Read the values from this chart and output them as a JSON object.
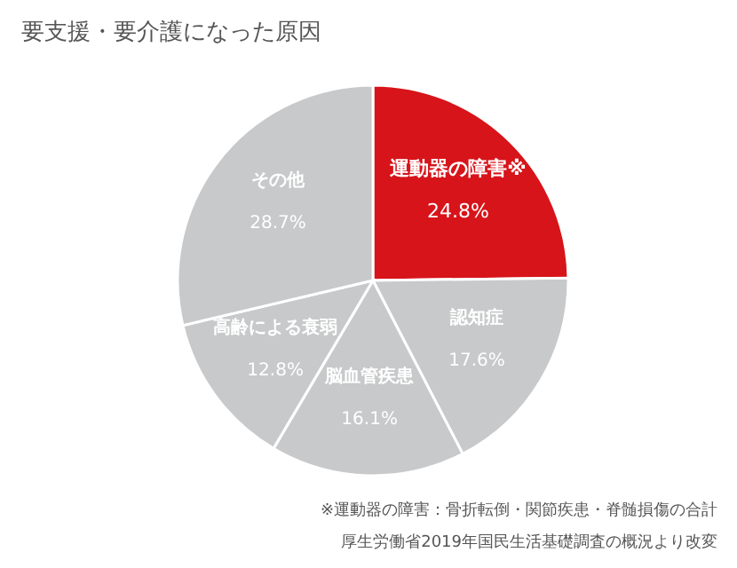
{
  "chart_data": {
    "type": "pie",
    "title": "要支援・要介護になった原因",
    "categories": [
      "運動器の障害※",
      "認知症",
      "脳血管疾患",
      "高齢による衰弱",
      "その他"
    ],
    "values": [
      24.8,
      17.6,
      16.1,
      12.8,
      28.7
    ],
    "value_labels": [
      "24.8%",
      "17.6%",
      "16.1%",
      "12.8%",
      "28.7%"
    ],
    "colors": [
      "#d7141a",
      "#c8c9ca",
      "#c8c9ca",
      "#c8c9ca",
      "#c8c9ca"
    ],
    "annotations": [
      "※運動器の障害：骨折転倒・関節疾患・脊髄損傷の合計",
      "厚生労働省2019年国民生活基礎調査の概況より改変"
    ]
  }
}
